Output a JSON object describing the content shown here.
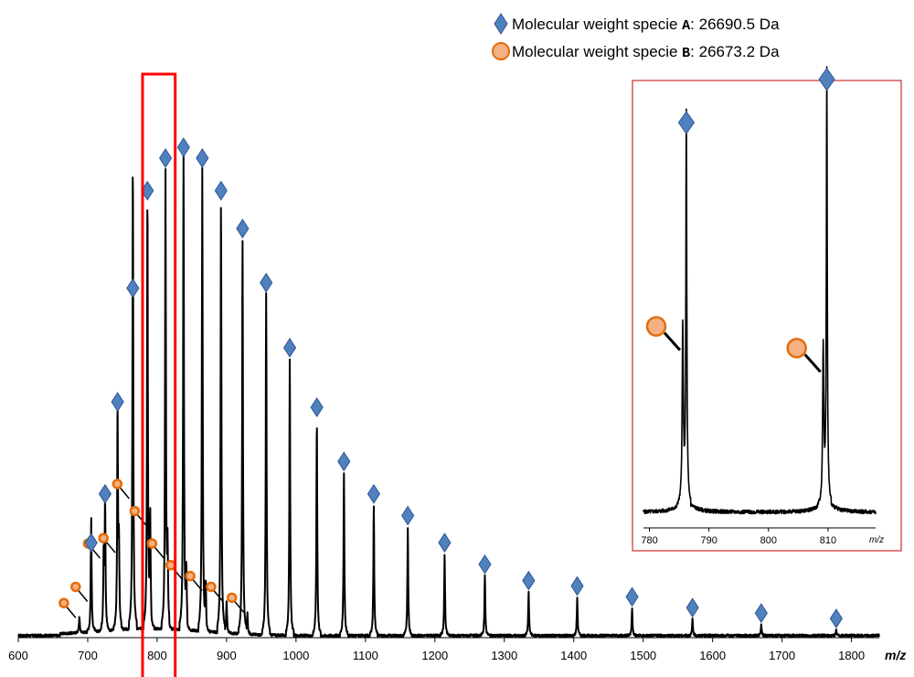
{
  "legend": {
    "items": [
      {
        "label": "Molecular weight specie ",
        "letter": "A",
        "suffix": ": 26690.5 Da",
        "marker": "diamond",
        "color": "#4f81bd"
      },
      {
        "label": "Molecular weight specie ",
        "letter": "B",
        "suffix": ": 26673.2 Da",
        "marker": "circle",
        "color": "#e46c0a"
      }
    ]
  },
  "chart_data": [
    {
      "type": "line",
      "xlabel": "m/z",
      "ylabel": "",
      "xlim": [
        600,
        1840
      ],
      "ylim": [
        0,
        100
      ],
      "x_ticks": [
        "600",
        "700",
        "800",
        "900",
        "1000",
        "1100",
        "1200",
        "1300",
        "1400",
        "1500",
        "1600",
        "1700",
        "1800"
      ],
      "grid": false,
      "highlight_region": [
        779,
        826
      ],
      "series": [
        {
          "name": "Molecular weight specie A: 26690.5 Da",
          "marker": "diamond",
          "x": [
            705,
            725,
            743,
            765,
            786,
            812,
            838,
            865,
            892,
            923,
            957,
            991,
            1030,
            1069,
            1112,
            1161,
            1214,
            1272,
            1335,
            1405,
            1484,
            1571,
            1670,
            1778
          ],
          "y": [
            15,
            24,
            41,
            62,
            80,
            86,
            88,
            86,
            80,
            73,
            63,
            51,
            40,
            30,
            24,
            20,
            15,
            11,
            8,
            7,
            5,
            3,
            2,
            1
          ]
        },
        {
          "name": "Molecular weight specie B: 26673.2 Da",
          "marker": "circle",
          "x": [
            688,
            705,
            723,
            745,
            765,
            790,
            815,
            842,
            870,
            900,
            930
          ],
          "y": [
            3,
            6,
            14,
            15,
            25,
            20,
            14,
            10,
            8,
            6,
            4
          ]
        }
      ]
    },
    {
      "type": "line",
      "xlabel": "m/z",
      "ylabel": "",
      "xlim": [
        779,
        818
      ],
      "ylim": [
        0,
        100
      ],
      "x_ticks": [
        "780",
        "790",
        "800",
        "810"
      ],
      "grid": false,
      "series": [
        {
          "name": "Molecular weight specie A: 26690.5 Da",
          "marker": "diamond",
          "x": [
            786.2,
            809.8
          ],
          "y": [
            89,
            99
          ]
        },
        {
          "name": "Molecular weight specie B: 26673.2 Da",
          "marker": "circle",
          "x": [
            785.6,
            809.2
          ],
          "y": [
            40,
            35
          ]
        }
      ]
    }
  ]
}
